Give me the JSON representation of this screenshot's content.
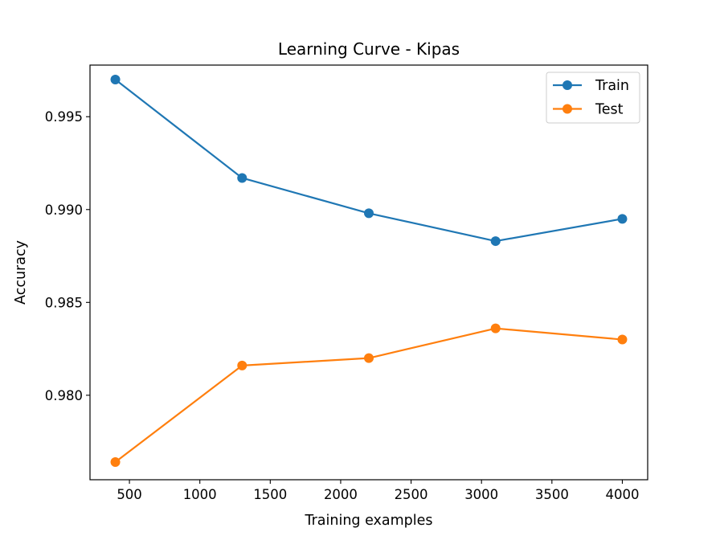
{
  "chart_data": {
    "type": "line",
    "title": "Learning Curve - Kipas",
    "xlabel": "Training examples",
    "ylabel": "Accuracy",
    "xlim": [
      220,
      4180
    ],
    "ylim": [
      0.97545,
      0.99778
    ],
    "xticks": [
      {
        "value": 500,
        "label": "500"
      },
      {
        "value": 1000,
        "label": "1000"
      },
      {
        "value": 1500,
        "label": "1500"
      },
      {
        "value": 2000,
        "label": "2000"
      },
      {
        "value": 2500,
        "label": "2500"
      },
      {
        "value": 3000,
        "label": "3000"
      },
      {
        "value": 3500,
        "label": "3500"
      },
      {
        "value": 4000,
        "label": "4000"
      }
    ],
    "yticks": [
      {
        "value": 0.98,
        "label": "0.980"
      },
      {
        "value": 0.985,
        "label": "0.985"
      },
      {
        "value": 0.99,
        "label": "0.990"
      },
      {
        "value": 0.995,
        "label": "0.995"
      }
    ],
    "x": [
      400,
      1300,
      2200,
      3100,
      4000
    ],
    "series": [
      {
        "name": "Train",
        "color": "#1f77b4",
        "marker": "circle",
        "values": [
          0.997,
          0.9917,
          0.9898,
          0.9883,
          0.9895
        ]
      },
      {
        "name": "Test",
        "color": "#ff7f0e",
        "marker": "circle",
        "values": [
          0.9764,
          0.9816,
          0.982,
          0.9836,
          0.983
        ]
      }
    ],
    "grid": false,
    "legend": "top-right"
  }
}
